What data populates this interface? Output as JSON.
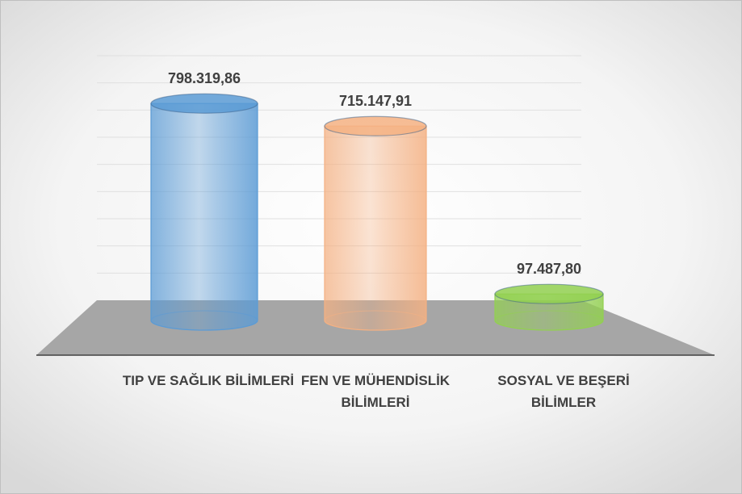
{
  "chart_data": {
    "type": "bar3d",
    "categories": [
      "TIP VE SAĞLIK BİLİMLERİ",
      "FEN VE MÜHENDİSLİK BİLİMLERİ",
      "SOSYAL VE BEŞERİ BİLİMLER"
    ],
    "values": [
      798319.86,
      715147.91,
      97487.8
    ],
    "value_labels": [
      "798.319,86",
      "715.147,91",
      "97.487,80"
    ],
    "colors": [
      "#5b9bd5",
      "#f4b183",
      "#92d050"
    ],
    "ylim": [
      0,
      900000
    ],
    "yticks": [
      0,
      100000,
      200000,
      300000,
      400000,
      500000,
      600000,
      700000,
      800000,
      900000
    ],
    "grid": true
  }
}
